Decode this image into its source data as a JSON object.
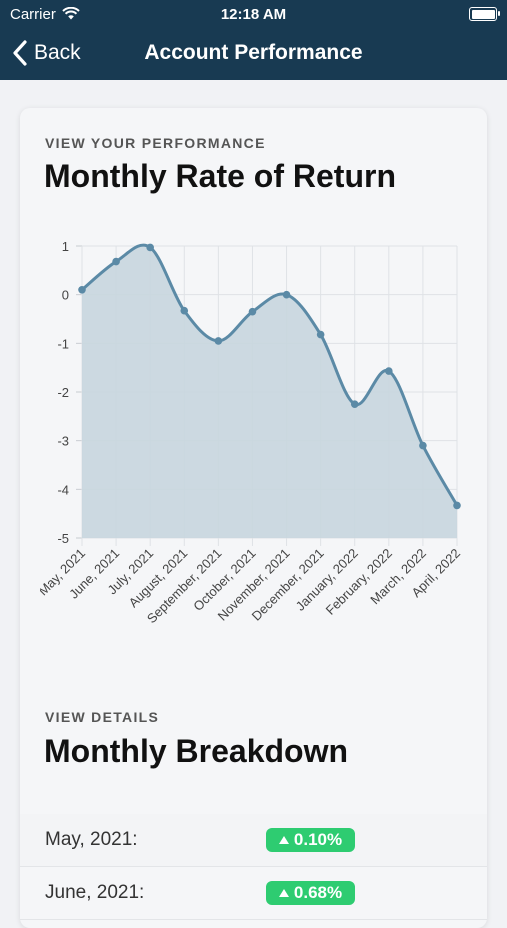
{
  "status_bar": {
    "carrier": "Carrier",
    "time": "12:18 AM"
  },
  "nav": {
    "back_label": "Back",
    "title": "Account Performance"
  },
  "performance": {
    "eyebrow": "VIEW YOUR PERFORMANCE",
    "title": "Monthly Rate of Return"
  },
  "details": {
    "eyebrow": "VIEW DETAILS",
    "title": "Monthly Breakdown"
  },
  "colors": {
    "nav_bg": "#183a52",
    "chart_line": "#5b8aa6",
    "chart_fill": "#c8d6de",
    "positive": "#2ecc71"
  },
  "chart_data": {
    "type": "area",
    "categories": [
      "May, 2021",
      "June, 2021",
      "July, 2021",
      "August, 2021",
      "September, 2021",
      "October, 2021",
      "November, 2021",
      "December, 2021",
      "January, 2022",
      "February, 2022",
      "March, 2022",
      "April, 2022"
    ],
    "values": [
      0.1,
      0.68,
      0.97,
      -0.33,
      -0.95,
      -0.35,
      0.0,
      -0.82,
      -2.25,
      -1.57,
      -3.1,
      -4.33
    ],
    "ylim": [
      -5,
      1
    ],
    "yticks": [
      "1",
      "0",
      "-1",
      "-2",
      "-3",
      "-4",
      "-5"
    ],
    "grid": true
  },
  "breakdown": [
    {
      "month": "May, 2021:",
      "value": "0.10%"
    },
    {
      "month": "June, 2021:",
      "value": "0.68%"
    }
  ]
}
